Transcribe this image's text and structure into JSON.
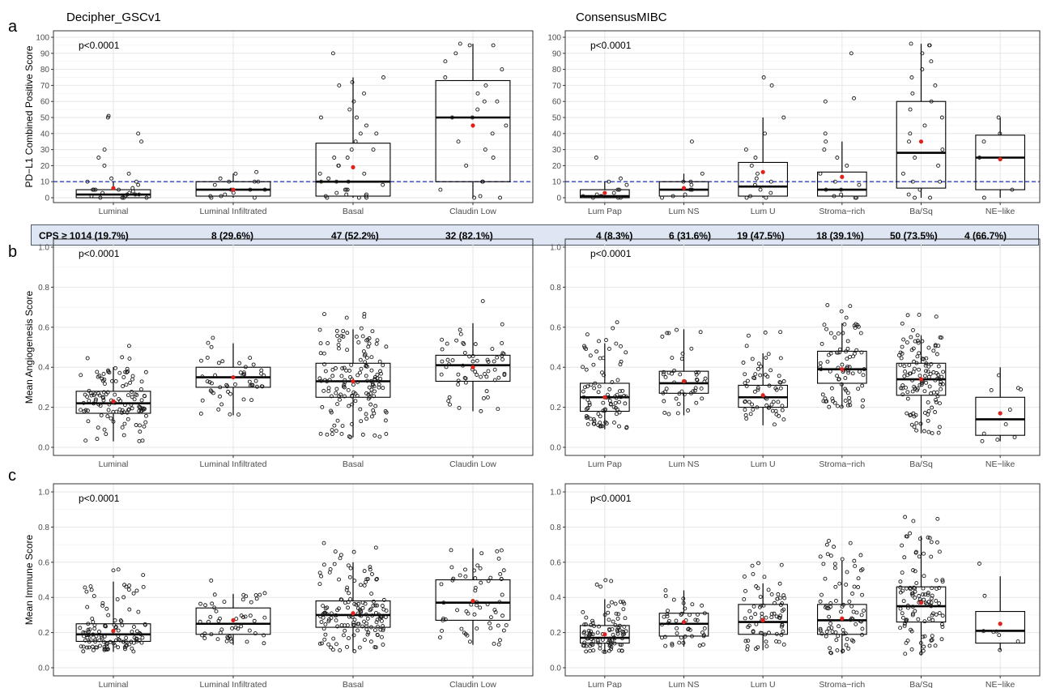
{
  "figure": {
    "panel_letters": [
      "a",
      "b",
      "c"
    ],
    "column_titles": [
      "Decipher_GSCv1",
      "ConsensusMIBC"
    ],
    "cps_row": {
      "label": "CPS ≥ 10",
      "left": [
        "14 (19.7%)",
        "8 (29.6%)",
        "47 (52.2%)",
        "32 (82.1%)"
      ],
      "right": [
        "4 (8.3%)",
        "6 (31.6%)",
        "19 (47.5%)",
        "18 (39.1%)",
        "50 (73.5%)",
        "4 (66.7%)"
      ]
    },
    "colors": {
      "box_stroke": "#000000",
      "mean_point": "#e0221c",
      "threshold_line": "#2f3fc2",
      "grid": "#e6e6e6",
      "cps_band_fill": "#dde6f2",
      "point_stroke": "#1a1a1a"
    }
  },
  "chart_data": [
    {
      "type": "box",
      "panel": "a",
      "column": "Decipher_GSCv1",
      "ylabel": "PD−L1 Combined Positive Score",
      "annotation": "p<0.0001",
      "ylim": [
        0,
        100
      ],
      "yticks": [
        0,
        10,
        20,
        30,
        40,
        50,
        60,
        70,
        80,
        90,
        100
      ],
      "threshold": 10,
      "categories": [
        "Luminal",
        "Luminal Infiltrated",
        "Basal",
        "Claudin Low"
      ],
      "boxes": [
        {
          "q1": 0,
          "median": 2,
          "q3": 5,
          "whisker_low": 0,
          "whisker_high": 10,
          "mean": 6
        },
        {
          "q1": 1,
          "median": 5,
          "q3": 10,
          "whisker_low": 0,
          "whisker_high": 15,
          "mean": 5
        },
        {
          "q1": 1,
          "median": 10,
          "q3": 34,
          "whisker_low": 0,
          "whisker_high": 75,
          "mean": 19
        },
        {
          "q1": 10,
          "median": 50,
          "q3": 73,
          "whisker_low": 0,
          "whisker_high": 96,
          "mean": 45
        }
      ],
      "points": [
        [
          0,
          0,
          0,
          0,
          1,
          1,
          1,
          2,
          2,
          2,
          3,
          3,
          4,
          5,
          5,
          5,
          5,
          6,
          8,
          10,
          10,
          12,
          15,
          20,
          25,
          30,
          35,
          40,
          50,
          51
        ],
        [
          0,
          0,
          1,
          1,
          2,
          3,
          5,
          5,
          5,
          8,
          10,
          10,
          10,
          12,
          15,
          16
        ],
        [
          0,
          0,
          0,
          1,
          1,
          2,
          2,
          3,
          5,
          5,
          5,
          8,
          10,
          10,
          10,
          12,
          15,
          15,
          20,
          20,
          25,
          25,
          30,
          30,
          35,
          40,
          40,
          45,
          50,
          50,
          55,
          60,
          65,
          70,
          72,
          75,
          90
        ],
        [
          0,
          0,
          1,
          5,
          10,
          10,
          20,
          25,
          30,
          35,
          40,
          45,
          50,
          50,
          55,
          60,
          60,
          65,
          70,
          75,
          80,
          85,
          90,
          95,
          95,
          96
        ]
      ]
    },
    {
      "type": "box",
      "panel": "a",
      "column": "ConsensusMIBC",
      "annotation": "p<0.0001",
      "ylim": [
        0,
        100
      ],
      "yticks": [
        0,
        10,
        20,
        30,
        40,
        50,
        60,
        70,
        80,
        90,
        100
      ],
      "threshold": 10,
      "categories": [
        "Lum Pap",
        "Lum NS",
        "Lum U",
        "Stroma−rich",
        "Ba/Sq",
        "NE−like"
      ],
      "boxes": [
        {
          "q1": 0,
          "median": 1,
          "q3": 5,
          "whisker_low": 0,
          "whisker_high": 10,
          "mean": 3
        },
        {
          "q1": 1,
          "median": 5,
          "q3": 10,
          "whisker_low": 0,
          "whisker_high": 15,
          "mean": 6
        },
        {
          "q1": 1,
          "median": 7,
          "q3": 22,
          "whisker_low": 0,
          "whisker_high": 50,
          "mean": 16
        },
        {
          "q1": 1,
          "median": 5,
          "q3": 16,
          "whisker_low": 0,
          "whisker_high": 35,
          "mean": 13
        },
        {
          "q1": 6,
          "median": 28,
          "q3": 60,
          "whisker_low": 0,
          "whisker_high": 96,
          "mean": 35
        },
        {
          "q1": 5,
          "median": 25,
          "q3": 39,
          "whisker_low": 0,
          "whisker_high": 50,
          "mean": 24
        }
      ],
      "points": [
        [
          0,
          0,
          0,
          1,
          1,
          1,
          2,
          3,
          5,
          5,
          8,
          10,
          12,
          25
        ],
        [
          0,
          1,
          2,
          5,
          5,
          8,
          10,
          10,
          15,
          35
        ],
        [
          0,
          0,
          1,
          3,
          5,
          8,
          10,
          12,
          15,
          20,
          25,
          30,
          40,
          50,
          70,
          75
        ],
        [
          0,
          0,
          1,
          2,
          5,
          5,
          8,
          10,
          15,
          20,
          25,
          30,
          35,
          40,
          60,
          62,
          90
        ],
        [
          0,
          0,
          2,
          5,
          10,
          10,
          15,
          20,
          25,
          30,
          35,
          40,
          45,
          50,
          55,
          60,
          65,
          70,
          75,
          80,
          85,
          90,
          95,
          95,
          96
        ],
        [
          0,
          5,
          25,
          35,
          40,
          50
        ]
      ]
    },
    {
      "type": "box",
      "panel": "b",
      "column": "Decipher_GSCv1",
      "ylabel": "Mean Angiogenesis Score",
      "annotation": "p<0.0001",
      "ylim": [
        0,
        1.0
      ],
      "yticks": [
        0.0,
        0.2,
        0.4,
        0.6,
        0.8,
        1.0
      ],
      "categories": [
        "Luminal",
        "Luminal Infiltrated",
        "Basal",
        "Claudin Low"
      ],
      "boxes": [
        {
          "q1": 0.17,
          "median": 0.22,
          "q3": 0.28,
          "whisker_low": 0.03,
          "whisker_high": 0.4,
          "mean": 0.23
        },
        {
          "q1": 0.3,
          "median": 0.35,
          "q3": 0.4,
          "whisker_low": 0.16,
          "whisker_high": 0.52,
          "mean": 0.35
        },
        {
          "q1": 0.25,
          "median": 0.33,
          "q3": 0.42,
          "whisker_low": 0.05,
          "whisker_high": 0.59,
          "mean": 0.33
        },
        {
          "q1": 0.33,
          "median": 0.41,
          "q3": 0.46,
          "whisker_low": 0.18,
          "whisker_high": 0.62,
          "mean": 0.4
        }
      ]
    },
    {
      "type": "box",
      "panel": "b",
      "column": "ConsensusMIBC",
      "annotation": "p<0.0001",
      "ylim": [
        0,
        1.0
      ],
      "yticks": [
        0.0,
        0.2,
        0.4,
        0.6,
        0.8,
        1.0
      ],
      "categories": [
        "Lum Pap",
        "Lum NS",
        "Lum U",
        "Stroma−rich",
        "Ba/Sq",
        "NE−like"
      ],
      "boxes": [
        {
          "q1": 0.18,
          "median": 0.25,
          "q3": 0.32,
          "whisker_low": 0.09,
          "whisker_high": 0.52,
          "mean": 0.25
        },
        {
          "q1": 0.27,
          "median": 0.32,
          "q3": 0.38,
          "whisker_low": 0.16,
          "whisker_high": 0.59,
          "mean": 0.33
        },
        {
          "q1": 0.2,
          "median": 0.25,
          "q3": 0.31,
          "whisker_low": 0.11,
          "whisker_high": 0.47,
          "mean": 0.26
        },
        {
          "q1": 0.32,
          "median": 0.39,
          "q3": 0.48,
          "whisker_low": 0.2,
          "whisker_high": 0.62,
          "mean": 0.39
        },
        {
          "q1": 0.26,
          "median": 0.34,
          "q3": 0.42,
          "whisker_low": 0.07,
          "whisker_high": 0.56,
          "mean": 0.34
        },
        {
          "q1": 0.06,
          "median": 0.14,
          "q3": 0.25,
          "whisker_low": 0.03,
          "whisker_high": 0.4,
          "mean": 0.17
        }
      ]
    },
    {
      "type": "box",
      "panel": "c",
      "column": "Decipher_GSCv1",
      "ylabel": "Mean Immune Score",
      "annotation": "p<0.0001",
      "ylim": [
        0,
        1.0
      ],
      "yticks": [
        0.0,
        0.2,
        0.4,
        0.6,
        0.8,
        1.0
      ],
      "categories": [
        "Luminal",
        "Luminal Infiltrated",
        "Basal",
        "Claudin Low"
      ],
      "boxes": [
        {
          "q1": 0.15,
          "median": 0.19,
          "q3": 0.25,
          "whisker_low": 0.09,
          "whisker_high": 0.49,
          "mean": 0.21
        },
        {
          "q1": 0.19,
          "median": 0.25,
          "q3": 0.34,
          "whisker_low": 0.13,
          "whisker_high": 0.42,
          "mean": 0.27
        },
        {
          "q1": 0.23,
          "median": 0.3,
          "q3": 0.38,
          "whisker_low": 0.09,
          "whisker_high": 0.6,
          "mean": 0.31
        },
        {
          "q1": 0.27,
          "median": 0.37,
          "q3": 0.5,
          "whisker_low": 0.13,
          "whisker_high": 0.68,
          "mean": 0.38
        }
      ]
    },
    {
      "type": "box",
      "panel": "c",
      "column": "ConsensusMIBC",
      "annotation": "p<0.0001",
      "ylim": [
        0,
        1.0
      ],
      "yticks": [
        0.0,
        0.2,
        0.4,
        0.6,
        0.8,
        1.0
      ],
      "categories": [
        "Lum Pap",
        "Lum NS",
        "Lum U",
        "Stroma−rich",
        "Ba/Sq",
        "NE−like"
      ],
      "boxes": [
        {
          "q1": 0.14,
          "median": 0.17,
          "q3": 0.24,
          "whisker_low": 0.09,
          "whisker_high": 0.39,
          "mean": 0.19
        },
        {
          "q1": 0.18,
          "median": 0.25,
          "q3": 0.31,
          "whisker_low": 0.12,
          "whisker_high": 0.44,
          "mean": 0.26
        },
        {
          "q1": 0.19,
          "median": 0.26,
          "q3": 0.36,
          "whisker_low": 0.1,
          "whisker_high": 0.48,
          "mean": 0.27
        },
        {
          "q1": 0.19,
          "median": 0.27,
          "q3": 0.36,
          "whisker_low": 0.08,
          "whisker_high": 0.61,
          "mean": 0.28
        },
        {
          "q1": 0.26,
          "median": 0.35,
          "q3": 0.46,
          "whisker_low": 0.07,
          "whisker_high": 0.75,
          "mean": 0.37
        },
        {
          "q1": 0.14,
          "median": 0.21,
          "q3": 0.32,
          "whisker_low": 0.1,
          "whisker_high": 0.52,
          "mean": 0.25
        }
      ]
    }
  ]
}
